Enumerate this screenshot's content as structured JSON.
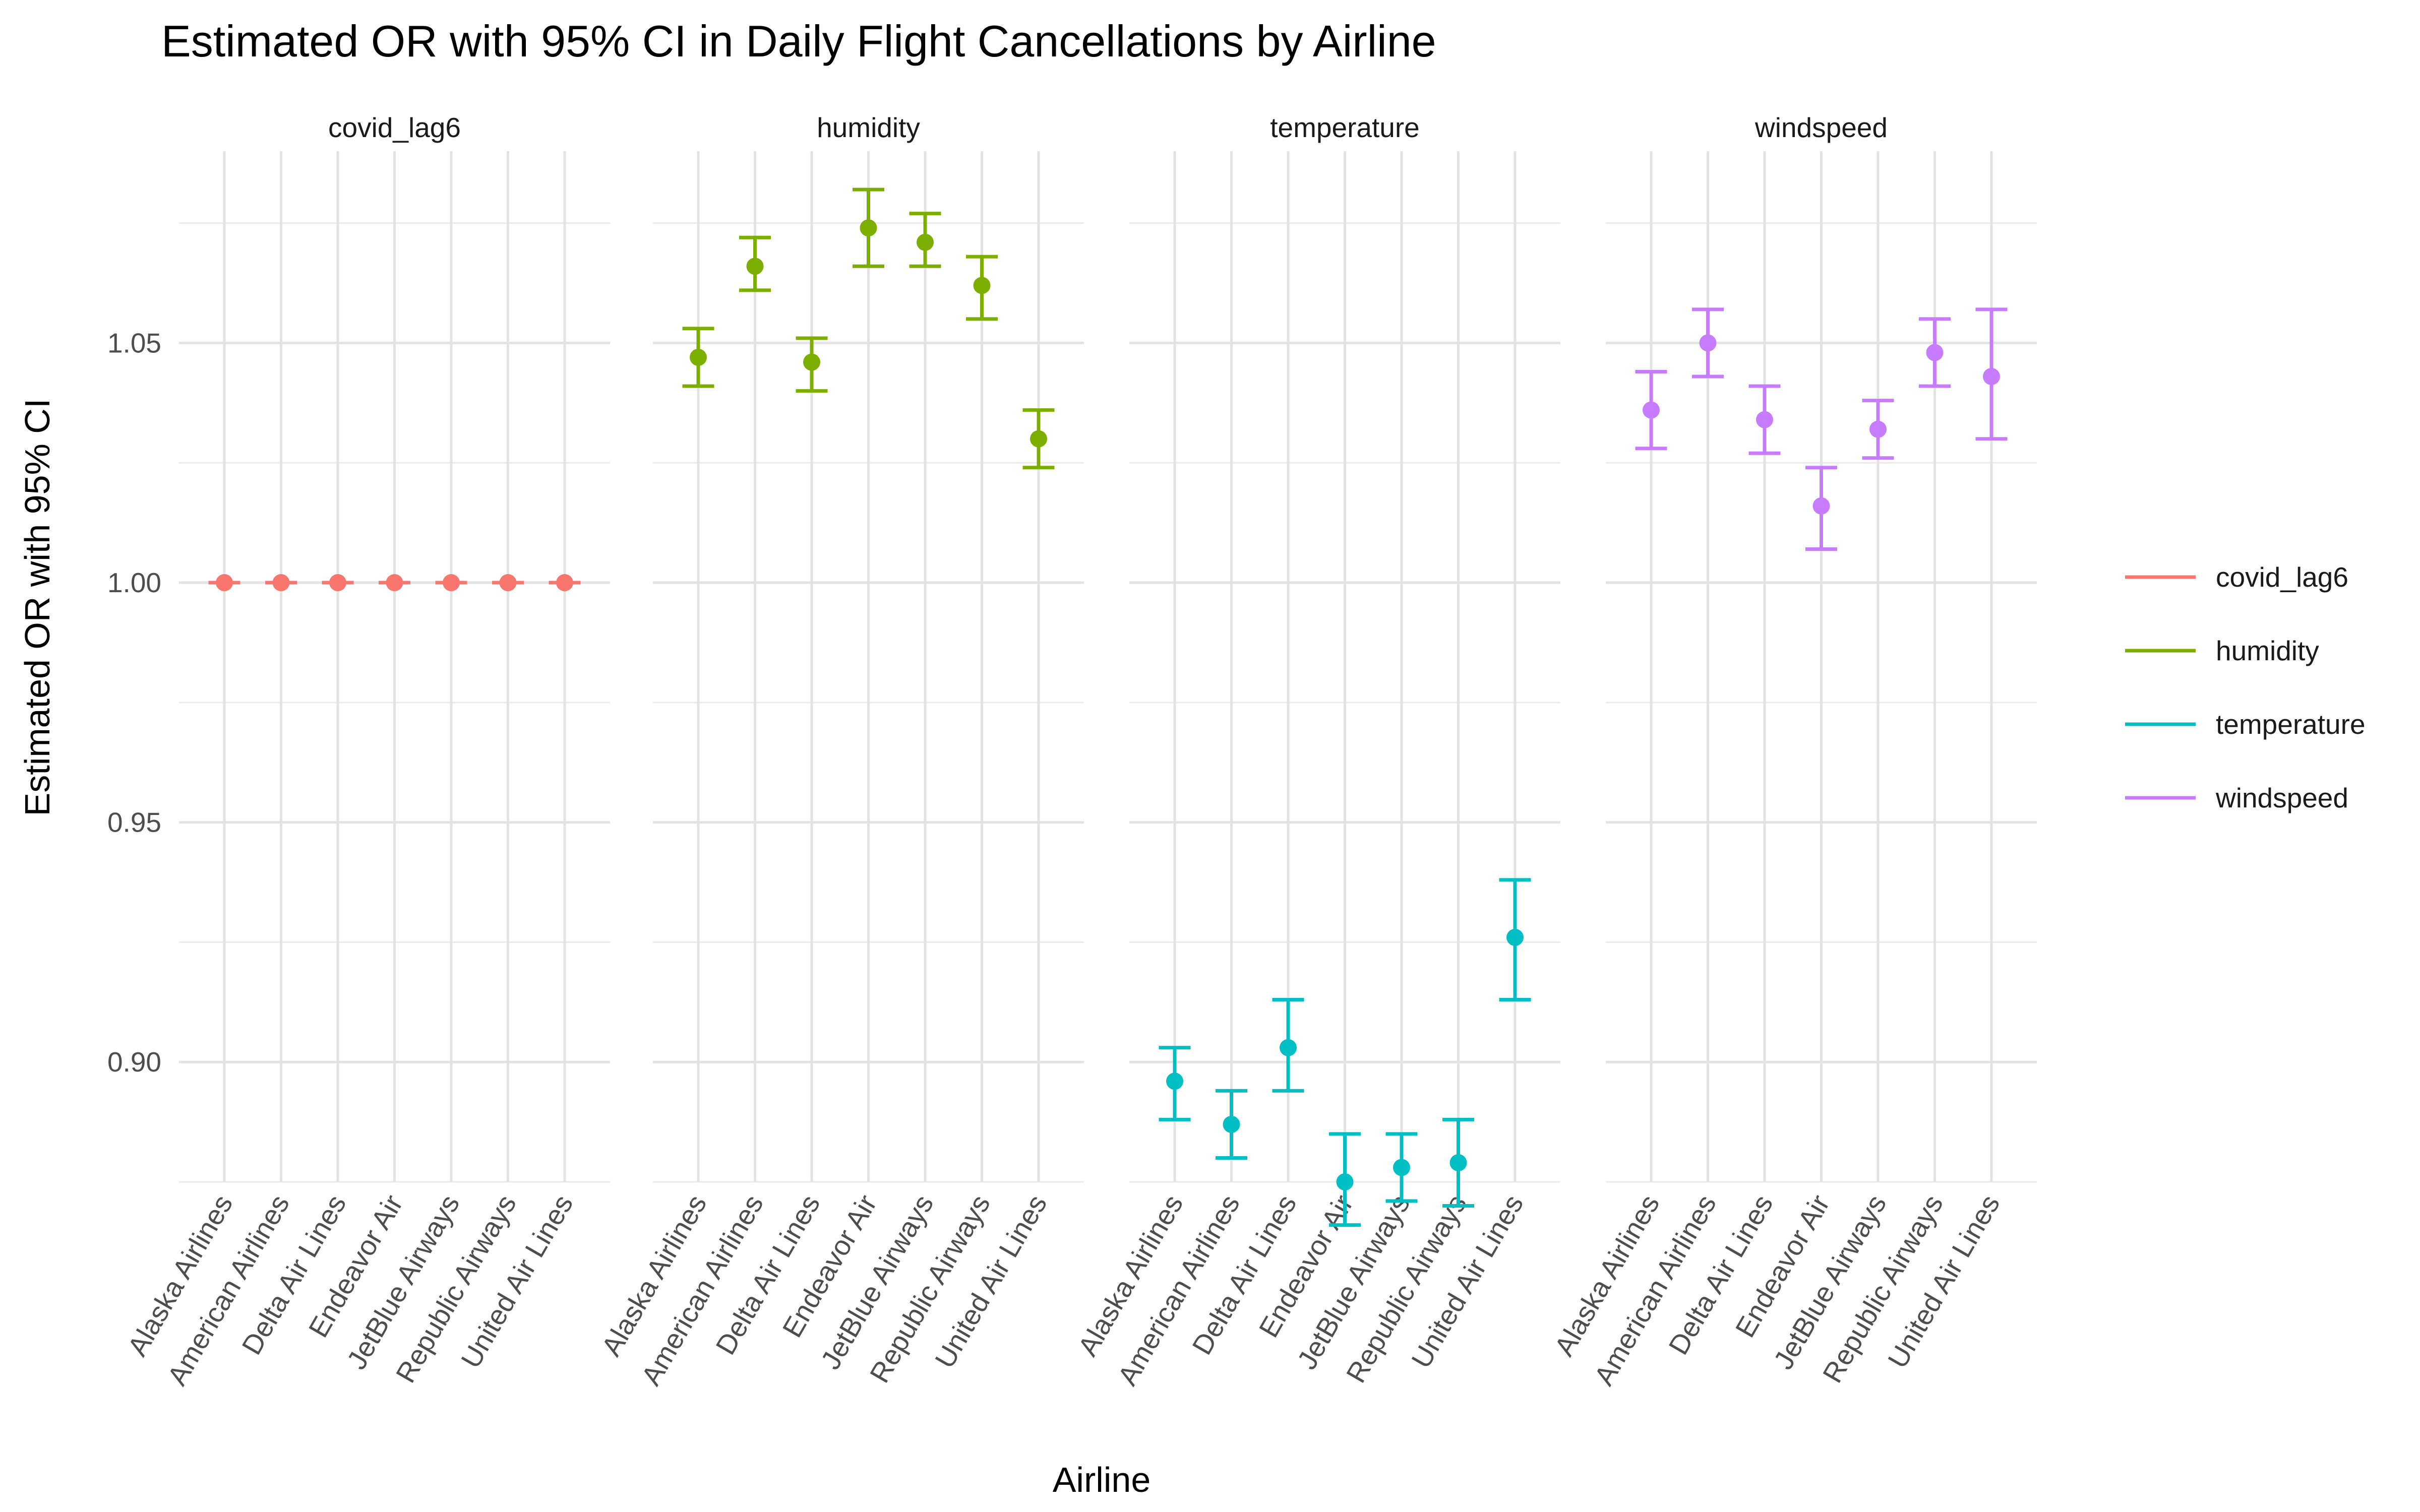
{
  "chart_data": {
    "type": "scatter",
    "title": "Estimated OR with 95% CI in Daily Flight Cancellations by Airline",
    "xlabel": "Airline",
    "ylabel": "Estimated OR with 95% CI",
    "ylim": [
      0.875,
      1.09
    ],
    "yticks": [
      "0.90",
      "0.95",
      "1.00",
      "1.05"
    ],
    "grid": true,
    "legend_position": "right",
    "categories": [
      "Alaska Airlines",
      "American Airlines",
      "Delta Air Lines",
      "Endeavor Air",
      "JetBlue Airways",
      "Republic Airways",
      "United Air Lines"
    ],
    "facets": [
      {
        "name": "covid_lag6",
        "color": "#F8766D",
        "estimate": [
          1.0,
          1.0,
          1.0,
          1.0,
          1.0,
          1.0,
          1.0
        ],
        "lower": [
          1.0,
          1.0,
          1.0,
          1.0,
          1.0,
          1.0,
          1.0
        ],
        "upper": [
          1.0,
          1.0,
          1.0,
          1.0,
          1.0,
          1.0,
          1.0
        ]
      },
      {
        "name": "humidity",
        "color": "#7CAE00",
        "estimate": [
          1.047,
          1.066,
          1.046,
          1.074,
          1.071,
          1.062,
          1.03
        ],
        "lower": [
          1.041,
          1.061,
          1.04,
          1.066,
          1.066,
          1.055,
          1.024
        ],
        "upper": [
          1.053,
          1.072,
          1.051,
          1.082,
          1.077,
          1.068,
          1.036
        ]
      },
      {
        "name": "temperature",
        "color": "#00BFC4",
        "estimate": [
          0.896,
          0.887,
          0.903,
          0.875,
          0.878,
          0.879,
          0.926
        ],
        "lower": [
          0.888,
          0.88,
          0.894,
          0.866,
          0.871,
          0.87,
          0.913
        ],
        "upper": [
          0.903,
          0.894,
          0.913,
          0.885,
          0.885,
          0.888,
          0.938
        ]
      },
      {
        "name": "windspeed",
        "color": "#C77CFF",
        "estimate": [
          1.036,
          1.05,
          1.034,
          1.016,
          1.032,
          1.048,
          1.043
        ],
        "lower": [
          1.028,
          1.043,
          1.027,
          1.007,
          1.026,
          1.041,
          1.03
        ],
        "upper": [
          1.044,
          1.057,
          1.041,
          1.024,
          1.038,
          1.055,
          1.057
        ]
      }
    ]
  }
}
